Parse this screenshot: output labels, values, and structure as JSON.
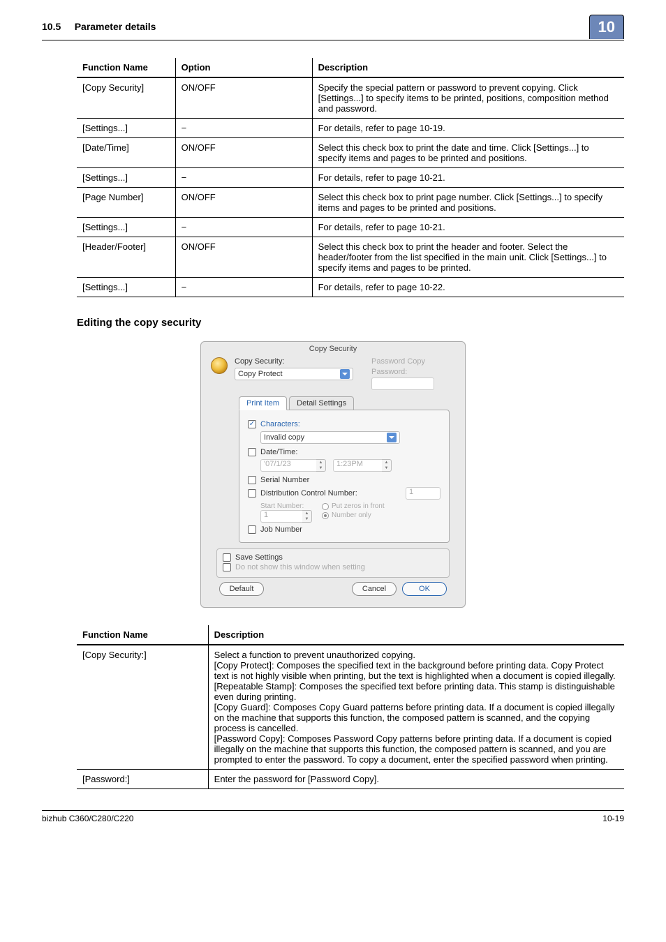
{
  "header": {
    "section_no": "10.5",
    "section_title": "Parameter details",
    "chapter_badge": "10"
  },
  "table1": {
    "headers": [
      "Function Name",
      "Option",
      "Description"
    ],
    "rows": [
      [
        "[Copy Security]",
        "ON/OFF",
        "Specify the special pattern or password to prevent copying. Click [Settings...] to specify items to be printed, positions, composition method and password."
      ],
      [
        "[Settings...]",
        "−",
        "For details, refer to page 10-19."
      ],
      [
        "[Date/Time]",
        "ON/OFF",
        "Select this check box to print the date and time. Click [Settings...] to specify items and pages to be printed and positions."
      ],
      [
        "[Settings...]",
        "−",
        "For details, refer to page 10-21."
      ],
      [
        "[Page Number]",
        "ON/OFF",
        "Select this check box to print page number. Click [Settings...] to specify items and pages to be printed and positions."
      ],
      [
        "[Settings...]",
        "−",
        "For details, refer to page 10-21."
      ],
      [
        "[Header/Footer]",
        "ON/OFF",
        "Select this check box to print the header and footer. Select the header/footer from the list specified in the main unit. Click [Settings...] to specify items and pages to be printed."
      ],
      [
        "[Settings...]",
        "−",
        "For details, refer to page 10-22."
      ]
    ]
  },
  "subheading": "Editing the copy security",
  "dialog": {
    "title": "Copy Security",
    "copy_security_label": "Copy Security:",
    "copy_security_value": "Copy Protect",
    "password_copy_label": "Password Copy",
    "password_label": "Password:",
    "tab_print_item": "Print Item",
    "tab_detail": "Detail Settings",
    "characters_label": "Characters:",
    "characters_value": "Invalid copy",
    "datetime_label": "Date/Time:",
    "date_value": "'07/1/23",
    "time_value": "1:23PM",
    "serial_label": "Serial Number",
    "dist_label": "Distribution Control Number:",
    "dist_value": "1",
    "start_number_label": "Start Number:",
    "start_number_value": "1",
    "radio_zeros": "Put zeros in front",
    "radio_number_only": "Number only",
    "job_number_label": "Job Number",
    "save_settings": "Save Settings",
    "do_not_show": "Do not show this window when setting",
    "btn_default": "Default",
    "btn_cancel": "Cancel",
    "btn_ok": "OK"
  },
  "table2": {
    "headers": [
      "Function Name",
      "Description"
    ],
    "rows": [
      [
        "[Copy Security:]",
        "Select a function to prevent unauthorized copying.\n[Copy Protect]: Composes the specified text in the background before printing data. Copy Protect text is not highly visible when printing, but the text is highlighted when a document is copied illegally.\n[Repeatable Stamp]: Composes the specified text before printing data. This stamp is distinguishable even during printing.\n[Copy Guard]: Composes Copy Guard patterns before printing data. If a document is copied illegally on the machine that supports this function, the composed pattern is scanned, and the copying process is cancelled.\n[Password Copy]: Composes Password Copy patterns before printing data. If a document is copied illegally on the machine that supports this function, the composed pattern is scanned, and you are prompted to enter the password. To copy a document, enter the specified password when printing."
      ],
      [
        "[Password:]",
        "Enter the password for [Password Copy]."
      ]
    ]
  },
  "footer": {
    "model": "bizhub C360/C280/C220",
    "page": "10-19"
  }
}
